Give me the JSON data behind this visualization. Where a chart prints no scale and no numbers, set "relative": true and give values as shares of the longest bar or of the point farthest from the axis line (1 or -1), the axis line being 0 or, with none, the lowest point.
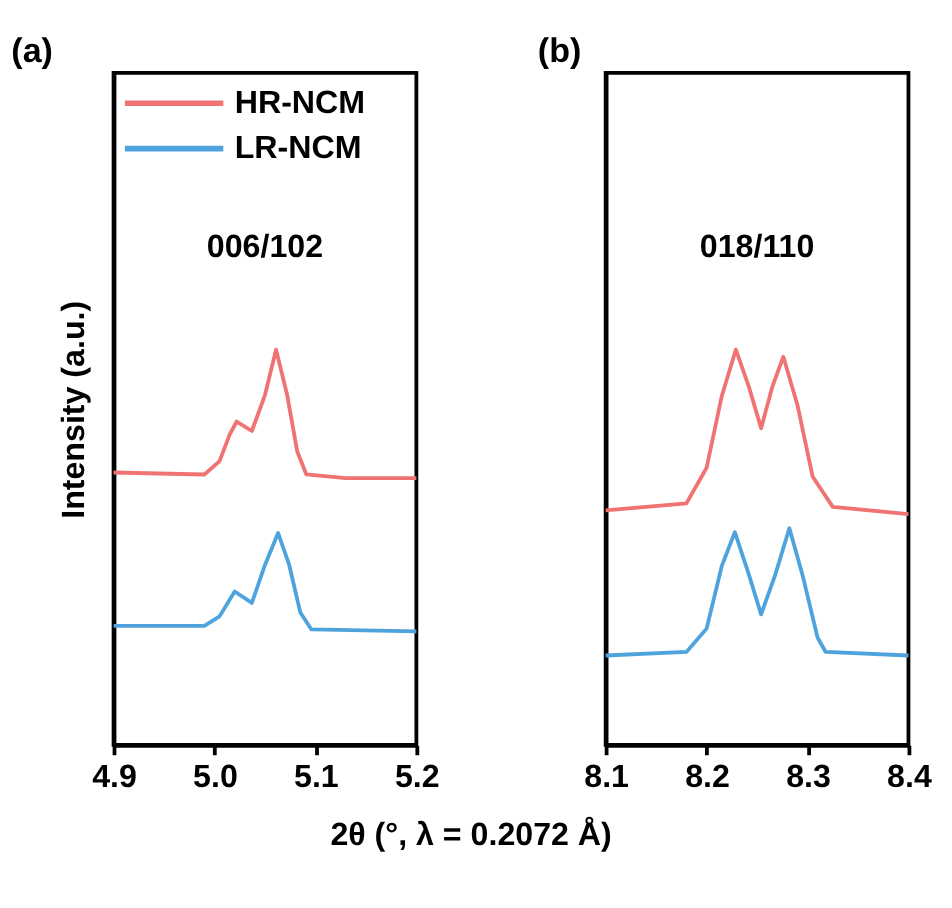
{
  "chart_data": [
    {
      "type": "line",
      "title": "(a)",
      "ylabel": "Intensity (a.u.)",
      "xlabel": "2θ (°, λ = 0.2072 Å)",
      "relative": true,
      "legend": "top left",
      "grid": false,
      "xlim": [
        4.9,
        5.2
      ],
      "xticks": [
        4.9,
        {
          "value": 5,
          "label": "5.0"
        },
        5.1,
        5.2
      ],
      "annotations": [
        "006/102"
      ],
      "series": [
        {
          "name": "HR-NCM",
          "color": "#f07272",
          "x": [
            4.9,
            4.99,
            5.005,
            5.015,
            5.022,
            5.037,
            5.05,
            5.061,
            5.072,
            5.082,
            5.091,
            5.13,
            5.2
          ],
          "values": [
            0.689,
            0.684,
            0.718,
            0.785,
            0.818,
            0.794,
            0.885,
            1.0,
            0.885,
            0.742,
            0.684,
            0.675,
            0.675
          ]
        },
        {
          "name": "LR-NCM",
          "color": "#4fa3dc",
          "x": [
            4.9,
            4.99,
            5.005,
            5.02,
            5.037,
            5.05,
            5.063,
            5.074,
            5.085,
            5.096,
            5.2
          ],
          "values": [
            0.301,
            0.301,
            0.325,
            0.388,
            0.359,
            0.455,
            0.536,
            0.455,
            0.335,
            0.292,
            0.287
          ]
        }
      ]
    },
    {
      "type": "line",
      "title": "(b)",
      "relative": true,
      "grid": false,
      "xlim": [
        8.1,
        8.4
      ],
      "xticks": [
        8.1,
        8.2,
        8.3,
        8.4
      ],
      "annotations": [
        "018/110"
      ],
      "series": [
        {
          "color": "#f07272",
          "x": [
            8.1,
            8.18,
            8.2,
            8.215,
            8.229,
            8.242,
            8.254,
            8.265,
            8.276,
            8.29,
            8.305,
            8.325,
            8.4
          ],
          "values": [
            0.593,
            0.611,
            0.701,
            0.882,
            1.0,
            0.905,
            0.801,
            0.905,
            0.982,
            0.86,
            0.679,
            0.602,
            0.584
          ]
        },
        {
          "color": "#4fa3dc",
          "x": [
            8.1,
            8.18,
            8.2,
            8.215,
            8.228,
            8.242,
            8.254,
            8.268,
            8.282,
            8.295,
            8.31,
            8.318,
            8.4
          ],
          "values": [
            0.226,
            0.235,
            0.294,
            0.452,
            0.538,
            0.43,
            0.33,
            0.43,
            0.548,
            0.43,
            0.271,
            0.235,
            0.226
          ]
        }
      ]
    }
  ]
}
